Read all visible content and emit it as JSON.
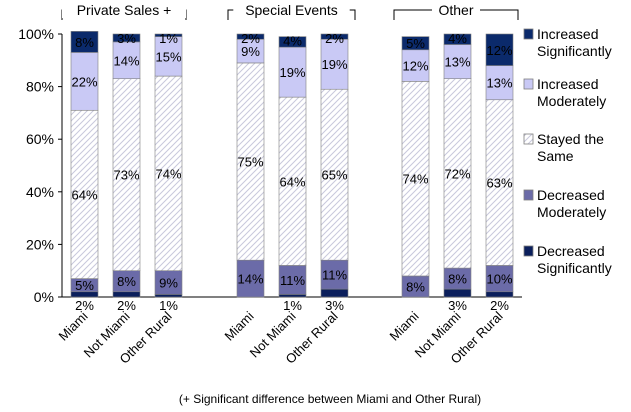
{
  "chart_data": {
    "type": "bar",
    "stacked": true,
    "percent": true,
    "title": "",
    "ylabel": "",
    "xlabel": "",
    "ylim": [
      0,
      100
    ],
    "yticks": [
      "0%",
      "20%",
      "40%",
      "60%",
      "80%",
      "100%"
    ],
    "groups": [
      {
        "label": "Private Sales +",
        "categories": [
          "Miami",
          "Not Miami",
          "Other Rural"
        ]
      },
      {
        "label": "Special Events",
        "categories": [
          "Miami",
          "Not Miami",
          "Other Rural"
        ]
      },
      {
        "label": "Other",
        "categories": [
          "Miami",
          "Not Miami",
          "Other Rural"
        ]
      }
    ],
    "series": [
      {
        "name": "Decreased Significantly",
        "color": "#0b1f5c",
        "values": [
          2,
          2,
          1,
          0,
          1,
          3,
          0,
          3,
          2
        ],
        "labels": [
          "2%",
          "2%",
          "1%",
          "",
          "1%",
          "3%",
          "",
          "3%",
          "2%"
        ]
      },
      {
        "name": "Decreased Moderately",
        "color": "#6b6ba8",
        "values": [
          5,
          8,
          9,
          14,
          11,
          11,
          8,
          8,
          10
        ],
        "labels": [
          "5%",
          "8%",
          "9%",
          "14%",
          "11%",
          "11%",
          "8%",
          "8%",
          "10%"
        ]
      },
      {
        "name": "Stayed the Same",
        "color": "#ffffff",
        "values": [
          64,
          73,
          74,
          75,
          64,
          65,
          74,
          72,
          63
        ],
        "labels": [
          "64%",
          "73%",
          "74%",
          "75%",
          "64%",
          "65%",
          "74%",
          "72%",
          "63%"
        ]
      },
      {
        "name": "Increased Moderately",
        "color": "#c9c9f5",
        "values": [
          22,
          14,
          15,
          9,
          19,
          19,
          12,
          13,
          13
        ],
        "labels": [
          "22%",
          "14%",
          "15%",
          "9%",
          "19%",
          "19%",
          "12%",
          "13%",
          "13%"
        ]
      },
      {
        "name": "Increased Significantly",
        "color": "#0b2a6b",
        "values": [
          8,
          3,
          1,
          2,
          4,
          2,
          5,
          4,
          12
        ],
        "labels": [
          "8%",
          "3%",
          "1%",
          "2%",
          "4%",
          "2%",
          "5%",
          "4%",
          "12%"
        ]
      }
    ],
    "legend": {
      "position": "right",
      "order": [
        "Increased Significantly",
        "Increased Moderately",
        "Stayed the Same",
        "Decreased Moderately",
        "Decreased Significantly"
      ]
    },
    "grid": false
  },
  "footnote": "(+ Significant difference between Miami and Other Rural)"
}
